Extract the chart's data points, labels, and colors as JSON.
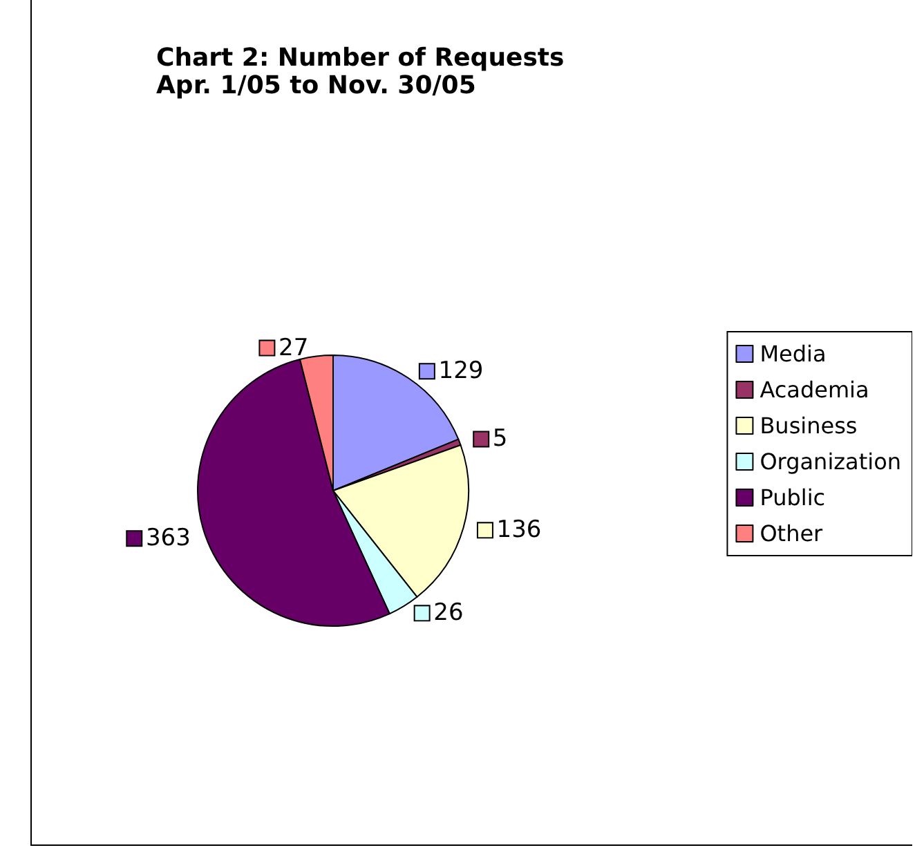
{
  "chart_data": {
    "type": "pie",
    "title": "Chart 2: Number of Requests",
    "subtitle": "Apr. 1/05 to Nov. 30/05",
    "categories": [
      "Media",
      "Academia",
      "Business",
      "Organization",
      "Public",
      "Other"
    ],
    "values": [
      129,
      5,
      136,
      26,
      363,
      27
    ],
    "colors": [
      "#9999ff",
      "#993366",
      "#ffffcc",
      "#ccffff",
      "#660066",
      "#ff8080"
    ],
    "data_labels": true,
    "legend": "right"
  }
}
